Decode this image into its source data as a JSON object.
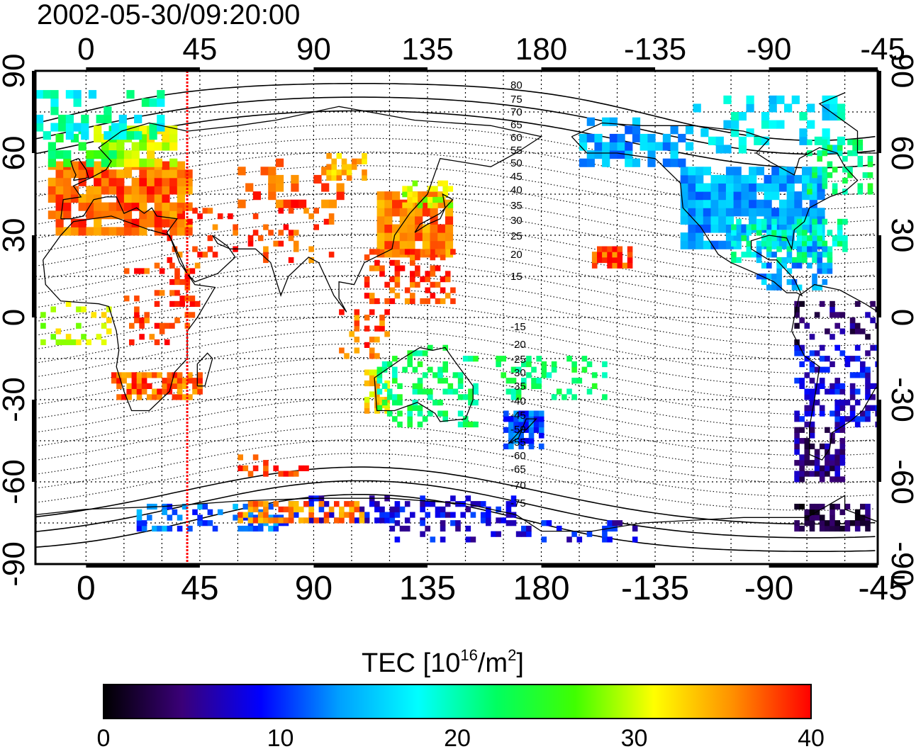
{
  "title": "2002-05-30/09:20:00",
  "axes": {
    "top_ticks": [
      "0",
      "45",
      "90",
      "135",
      "180",
      "-135",
      "-90",
      "-45"
    ],
    "bottom_ticks": [
      "0",
      "45",
      "90",
      "135",
      "180",
      "-135",
      "-90",
      "-45"
    ],
    "left_ticks": [
      "90",
      "60",
      "30",
      "0",
      "-30",
      "-60",
      "-90"
    ],
    "right_ticks": [
      "90",
      "60",
      "30",
      "0",
      "-30",
      "-60",
      "-90"
    ],
    "lon_range": [
      -20,
      313
    ],
    "lat_range": [
      -90,
      90
    ]
  },
  "contour_labels": {
    "north": [
      "80",
      "75",
      "70",
      "65",
      "60",
      "55",
      "50",
      "45",
      "40",
      "35",
      "30",
      "25",
      "20",
      "15"
    ],
    "south": [
      "-15",
      "-20",
      "-25",
      "-30",
      "-35",
      "-40",
      "-45",
      "-50",
      "-55",
      "-60",
      "-65",
      "-70",
      "-75"
    ]
  },
  "terminator_longitude": 40,
  "colorbar": {
    "title_main": "TEC  [10",
    "title_sup1": "16",
    "title_mid": "/m",
    "title_sup2": "2",
    "title_end": "]",
    "ticks": [
      "0",
      "10",
      "20",
      "30",
      "40"
    ],
    "range": [
      0,
      40
    ],
    "stops": [
      "#000000",
      "#3a0078",
      "#0000ff",
      "#00a0ff",
      "#00ffff",
      "#00ff60",
      "#40ff00",
      "#ffff00",
      "#ff9000",
      "#ff0000"
    ]
  },
  "colors": {
    "terminator": "#ff0000",
    "coast": "#000000",
    "grid": "#000000"
  }
}
